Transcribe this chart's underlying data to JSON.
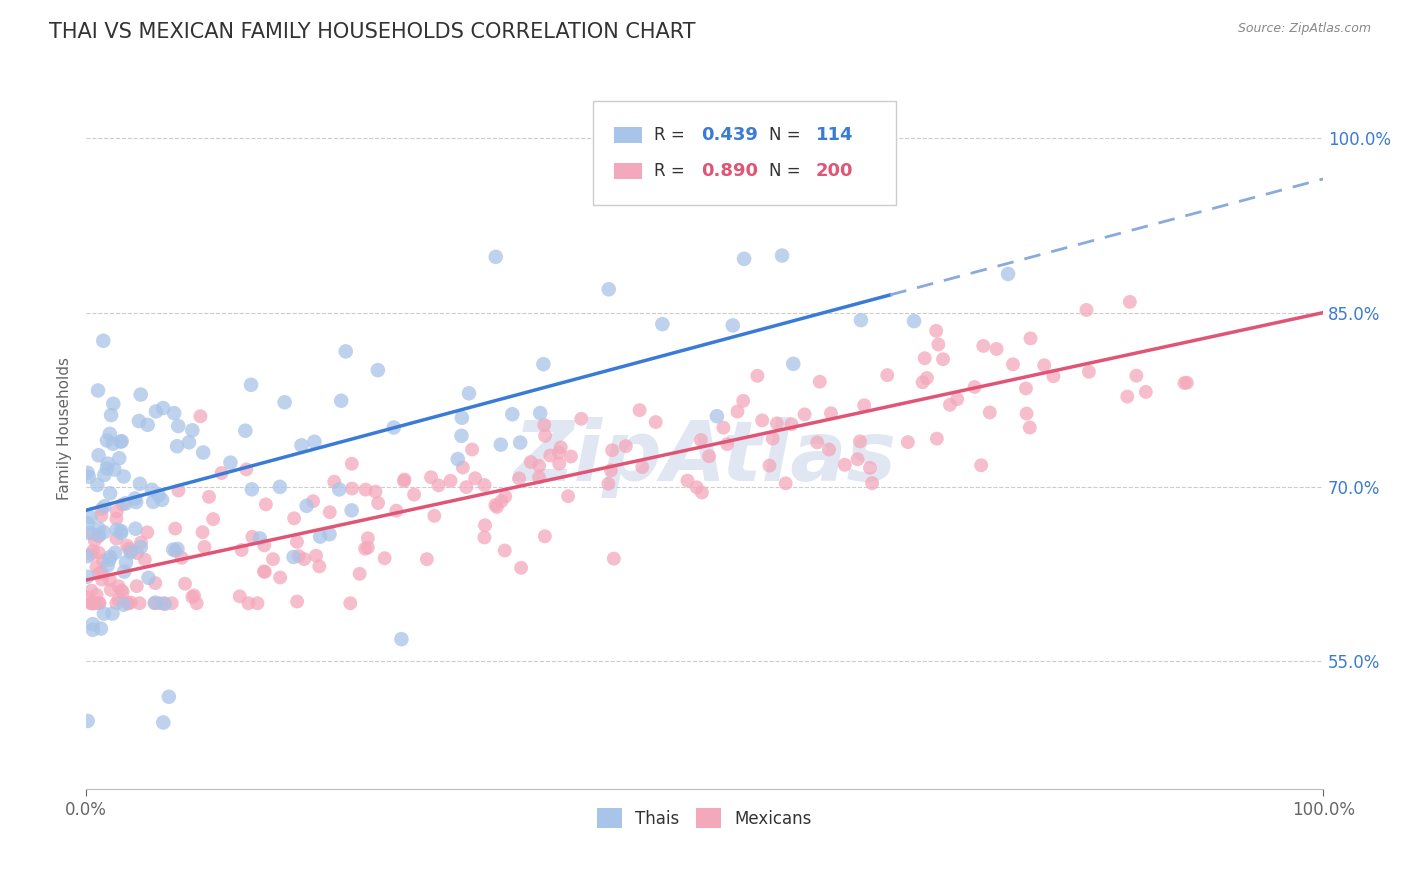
{
  "title": "THAI VS MEXICAN FAMILY HOUSEHOLDS CORRELATION CHART",
  "source": "Source: ZipAtlas.com",
  "ylabel": "Family Households",
  "xlim": [
    0.0,
    1.0
  ],
  "ylim": [
    0.44,
    1.06
  ],
  "yticks": [
    0.55,
    0.7,
    0.85,
    1.0
  ],
  "ytick_labels": [
    "55.0%",
    "70.0%",
    "85.0%",
    "100.0%"
  ],
  "thai_R": 0.439,
  "thai_N": 114,
  "mexican_R": 0.89,
  "mexican_N": 200,
  "thai_color": "#a8c4e8",
  "mexican_color": "#f4a8bb",
  "thai_line_color": "#3a7bd5",
  "mexican_line_color": "#e05575",
  "dashed_line_color": "#88aadd",
  "watermark_color": "#c8d4e8",
  "watermark_text": "ZipAtlas",
  "title_color": "#333333",
  "title_fontsize": 15,
  "label_fontsize": 11,
  "tick_fontsize": 12,
  "right_tick_color": "#3a7bd5",
  "background_color": "#ffffff",
  "seed": 7,
  "thai_intercept": 0.68,
  "thai_slope": 0.285,
  "thai_noise": 0.065,
  "mexican_intercept": 0.62,
  "mexican_slope": 0.23,
  "mexican_noise": 0.035
}
